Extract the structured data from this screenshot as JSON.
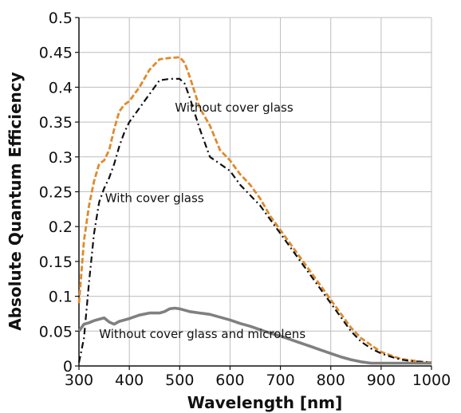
{
  "chart_data": {
    "type": "line",
    "title": "",
    "xlabel": "Wavelength [nm]",
    "ylabel": "Absolute Quantum Efficiency",
    "xlim": [
      300,
      1000
    ],
    "ylim": [
      0,
      0.5
    ],
    "x_ticks": [
      300,
      400,
      500,
      600,
      700,
      800,
      900,
      1000
    ],
    "x_tick_labels": [
      "300",
      "400",
      "500",
      "600",
      "700",
      "800",
      "900",
      "1000"
    ],
    "y_ticks": [
      0,
      0.05,
      0.1,
      0.15,
      0.2,
      0.25,
      0.3,
      0.35,
      0.4,
      0.45,
      0.5
    ],
    "y_tick_labels": [
      "0",
      "0.05",
      "0.1",
      "0.15",
      "0.2",
      "0.25",
      "0.3",
      "0.35",
      "0.4",
      "0.45",
      "0.5"
    ],
    "grid": true,
    "legend": "none",
    "series": [
      {
        "name": "Without cover glass",
        "color": "#e08a2c",
        "style": "dashed",
        "x": [
          300,
          310,
          320,
          330,
          340,
          350,
          360,
          370,
          380,
          390,
          400,
          420,
          440,
          460,
          480,
          500,
          510,
          520,
          540,
          560,
          580,
          600,
          620,
          640,
          660,
          680,
          700,
          720,
          740,
          760,
          780,
          800,
          820,
          840,
          860,
          880,
          900,
          920,
          940,
          960,
          980,
          1000
        ],
        "y": [
          0.09,
          0.18,
          0.23,
          0.265,
          0.29,
          0.295,
          0.31,
          0.34,
          0.365,
          0.375,
          0.38,
          0.4,
          0.425,
          0.44,
          0.442,
          0.443,
          0.435,
          0.415,
          0.37,
          0.345,
          0.31,
          0.295,
          0.275,
          0.26,
          0.24,
          0.215,
          0.195,
          0.175,
          0.155,
          0.135,
          0.115,
          0.095,
          0.075,
          0.055,
          0.04,
          0.03,
          0.02,
          0.015,
          0.01,
          0.008,
          0.006,
          0.005
        ]
      },
      {
        "name": "With cover glass",
        "color": "#111111",
        "style": "dash-dot",
        "x": [
          300,
          310,
          320,
          330,
          340,
          350,
          360,
          370,
          380,
          390,
          400,
          420,
          440,
          460,
          480,
          500,
          510,
          520,
          540,
          560,
          580,
          600,
          620,
          640,
          660,
          680,
          700,
          720,
          740,
          760,
          780,
          800,
          820,
          840,
          860,
          880,
          900,
          920,
          940,
          960,
          980,
          1000
        ],
        "y": [
          0.005,
          0.04,
          0.12,
          0.19,
          0.235,
          0.255,
          0.27,
          0.29,
          0.315,
          0.335,
          0.35,
          0.37,
          0.39,
          0.41,
          0.412,
          0.412,
          0.405,
          0.385,
          0.34,
          0.3,
          0.29,
          0.28,
          0.26,
          0.245,
          0.23,
          0.21,
          0.19,
          0.17,
          0.15,
          0.13,
          0.11,
          0.09,
          0.07,
          0.05,
          0.035,
          0.025,
          0.018,
          0.013,
          0.009,
          0.007,
          0.006,
          0.005
        ]
      },
      {
        "name": "Without cover glass and microlens",
        "color": "#808080",
        "style": "solid",
        "x": [
          300,
          310,
          320,
          330,
          340,
          350,
          360,
          370,
          380,
          400,
          420,
          440,
          460,
          470,
          480,
          490,
          500,
          520,
          540,
          560,
          580,
          600,
          620,
          640,
          660,
          680,
          700,
          720,
          740,
          760,
          780,
          800,
          820,
          840,
          860,
          880,
          900,
          920,
          940,
          960,
          980,
          1000
        ],
        "y": [
          0.05,
          0.06,
          0.062,
          0.065,
          0.067,
          0.069,
          0.063,
          0.06,
          0.064,
          0.068,
          0.073,
          0.076,
          0.076,
          0.078,
          0.082,
          0.083,
          0.082,
          0.078,
          0.076,
          0.074,
          0.07,
          0.066,
          0.061,
          0.057,
          0.052,
          0.047,
          0.043,
          0.038,
          0.033,
          0.028,
          0.023,
          0.018,
          0.013,
          0.009,
          0.006,
          0.004,
          0.004,
          0.004,
          0.004,
          0.004,
          0.004,
          0.004
        ]
      }
    ],
    "annotations": [
      {
        "text": "Without cover glass",
        "x": 608,
        "y": 0.365
      },
      {
        "text": "With cover glass",
        "x": 450,
        "y": 0.235
      },
      {
        "text": "Without cover glass and microlens",
        "x": 545,
        "y": 0.04
      }
    ]
  }
}
